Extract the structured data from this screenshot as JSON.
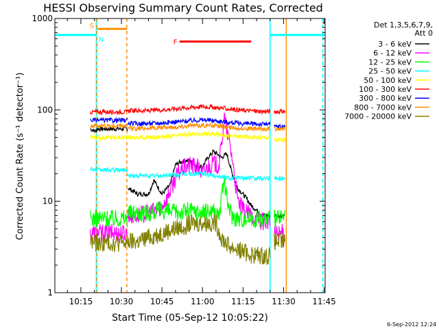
{
  "chart_data": {
    "type": "line",
    "title": "HESSI Observing Summary Count Rates, Corrected",
    "xlabel": "Start Time (05-Sep-12 10:05:22)",
    "ylabel": "Corrected Count Rate (s⁻¹ detector⁻¹)",
    "y_scale": "log",
    "ylim": [
      1,
      1000
    ],
    "yticks": [
      1,
      10,
      100,
      1000
    ],
    "ytick_labels": [
      "1",
      "10",
      "100",
      "1000"
    ],
    "x_unit": "minutes",
    "xlim": [
      605.37,
      705.37
    ],
    "xticks": [
      615,
      630,
      645,
      660,
      675,
      690,
      705
    ],
    "xtick_labels": [
      "10:15",
      "10:30",
      "10:45",
      "11:00",
      "11:15",
      "11:30",
      "11:45"
    ],
    "legend_title_lines": [
      "Det 1,3,5,6,7,9,",
      "Att 0"
    ],
    "legend_position": "right",
    "footer_date": "6-Sep-2012 12:24",
    "segments": [
      [
        618.5,
        632.2
      ],
      [
        632.3,
        685.0
      ],
      [
        686.5,
        690.5
      ]
    ],
    "series": [
      {
        "name": "3 - 6 keV",
        "color": "#000000",
        "points": [
          [
            618.5,
            62
          ],
          [
            619.5,
            60
          ],
          [
            620.5,
            58
          ],
          [
            620.9,
            62
          ],
          [
            632.3,
            14
          ],
          [
            636,
            12
          ],
          [
            640,
            12
          ],
          [
            642,
            17
          ],
          [
            645,
            12
          ],
          [
            648,
            15
          ],
          [
            650,
            25
          ],
          [
            652,
            27
          ],
          [
            655,
            28
          ],
          [
            658,
            24
          ],
          [
            660,
            24
          ],
          [
            662,
            30
          ],
          [
            664,
            35
          ],
          [
            666,
            32
          ],
          [
            667,
            30
          ],
          [
            669,
            33
          ],
          [
            671,
            20
          ],
          [
            673,
            14
          ],
          [
            676,
            11
          ],
          [
            678,
            9
          ],
          [
            680,
            8
          ],
          [
            682,
            7
          ],
          [
            685,
            7
          ],
          [
            686.5,
            7
          ],
          [
            688,
            7
          ],
          [
            690.5,
            7
          ]
        ]
      },
      {
        "name": "6 - 12 keV",
        "color": "#ff00ff",
        "points": [
          [
            618.5,
            4.5
          ],
          [
            620.5,
            4.5
          ],
          [
            632.3,
            7
          ],
          [
            636,
            7
          ],
          [
            640,
            7.5
          ],
          [
            643,
            8
          ],
          [
            645,
            9
          ],
          [
            647,
            11
          ],
          [
            650,
            18
          ],
          [
            652,
            22
          ],
          [
            655,
            25
          ],
          [
            658,
            24
          ],
          [
            660,
            20
          ],
          [
            662,
            24
          ],
          [
            664,
            26
          ],
          [
            666,
            24
          ],
          [
            667,
            40
          ],
          [
            668,
            85
          ],
          [
            669,
            60
          ],
          [
            671,
            30
          ],
          [
            673,
            10
          ],
          [
            675,
            8
          ],
          [
            678,
            7
          ],
          [
            680,
            6.5
          ],
          [
            682,
            6
          ],
          [
            685,
            6
          ],
          [
            686.5,
            4.5
          ],
          [
            690.5,
            4.5
          ]
        ]
      },
      {
        "name": "12 - 25 keV",
        "color": "#00ff00",
        "points": [
          [
            618.5,
            6.5
          ],
          [
            620.5,
            6.5
          ],
          [
            632.3,
            7.5
          ],
          [
            636,
            7.5
          ],
          [
            640,
            7.5
          ],
          [
            645,
            8
          ],
          [
            650,
            7.5
          ],
          [
            655,
            8
          ],
          [
            660,
            7.5
          ],
          [
            664,
            8
          ],
          [
            666,
            7
          ],
          [
            667,
            10
          ],
          [
            668,
            18
          ],
          [
            669,
            10
          ],
          [
            671,
            7
          ],
          [
            673,
            6.5
          ],
          [
            678,
            6.5
          ],
          [
            685,
            6.5
          ],
          [
            686.5,
            6.5
          ],
          [
            690.5,
            6.5
          ]
        ]
      },
      {
        "name": "25 - 50 keV",
        "color": "#00ffff",
        "points": [
          [
            618.5,
            23
          ],
          [
            620.5,
            22
          ],
          [
            632.3,
            19
          ],
          [
            640,
            19
          ],
          [
            645,
            19
          ],
          [
            650,
            19.5
          ],
          [
            655,
            20
          ],
          [
            660,
            20
          ],
          [
            665,
            19
          ],
          [
            670,
            18
          ],
          [
            675,
            18
          ],
          [
            680,
            18
          ],
          [
            685,
            18
          ],
          [
            686.5,
            18
          ],
          [
            690.5,
            18
          ]
        ]
      },
      {
        "name": "50 - 100 keV",
        "color": "#ffff00",
        "points": [
          [
            618.5,
            50
          ],
          [
            620.5,
            50
          ],
          [
            632.3,
            50
          ],
          [
            640,
            50
          ],
          [
            645,
            51
          ],
          [
            650,
            52
          ],
          [
            655,
            54
          ],
          [
            660,
            55
          ],
          [
            665,
            54
          ],
          [
            670,
            52
          ],
          [
            675,
            51
          ],
          [
            680,
            50
          ],
          [
            685,
            50
          ],
          [
            686.5,
            47
          ],
          [
            690.5,
            47
          ]
        ]
      },
      {
        "name": "100 - 300 keV",
        "color": "#ff0000",
        "points": [
          [
            618.5,
            95
          ],
          [
            620.5,
            95
          ],
          [
            632.3,
            98
          ],
          [
            640,
            98
          ],
          [
            645,
            100
          ],
          [
            650,
            103
          ],
          [
            655,
            106
          ],
          [
            660,
            109
          ],
          [
            665,
            106
          ],
          [
            670,
            102
          ],
          [
            675,
            99
          ],
          [
            680,
            97
          ],
          [
            685,
            96
          ],
          [
            686.5,
            96
          ],
          [
            690.5,
            96
          ]
        ]
      },
      {
        "name": "300 - 800 keV",
        "color": "#0000ff",
        "points": [
          [
            618.5,
            77
          ],
          [
            620.5,
            77
          ],
          [
            632.3,
            71
          ],
          [
            640,
            71
          ],
          [
            645,
            72
          ],
          [
            650,
            74
          ],
          [
            655,
            76
          ],
          [
            660,
            78
          ],
          [
            665,
            76
          ],
          [
            670,
            73
          ],
          [
            675,
            71
          ],
          [
            680,
            70
          ],
          [
            685,
            70
          ],
          [
            686.5,
            66
          ],
          [
            690.5,
            66
          ]
        ]
      },
      {
        "name": "800 - 7000 keV",
        "color": "#ff8c00",
        "points": [
          [
            618.5,
            67
          ],
          [
            620.5,
            67
          ],
          [
            632.3,
            63
          ],
          [
            640,
            63
          ],
          [
            645,
            64
          ],
          [
            650,
            65
          ],
          [
            655,
            67
          ],
          [
            660,
            68
          ],
          [
            665,
            67
          ],
          [
            670,
            64
          ],
          [
            675,
            63
          ],
          [
            680,
            62
          ],
          [
            685,
            62
          ],
          [
            686.5,
            62
          ],
          [
            690.5,
            62
          ]
        ]
      },
      {
        "name": "7000 - 20000 keV",
        "color": "#808000",
        "points": [
          [
            618.5,
            3.7
          ],
          [
            620.5,
            3.5
          ],
          [
            632.3,
            3.6
          ],
          [
            636,
            3.6
          ],
          [
            640,
            4.0
          ],
          [
            645,
            4.5
          ],
          [
            650,
            5.0
          ],
          [
            655,
            5.6
          ],
          [
            660,
            5.8
          ],
          [
            665,
            5.8
          ],
          [
            667,
            4.0
          ],
          [
            670,
            3.2
          ],
          [
            673,
            3.0
          ],
          [
            678,
            2.6
          ],
          [
            685,
            2.5
          ],
          [
            686.5,
            3.6
          ],
          [
            690.5,
            3.6
          ]
        ]
      }
    ],
    "annotations": [
      {
        "label": "S",
        "color": "#ff8c00",
        "x_start": 621.0,
        "x_end": 632.0,
        "y": 770
      },
      {
        "label": "N",
        "color": "#00ffff",
        "x_start": 605.37,
        "x_end": 620.8,
        "y": 660
      },
      {
        "label": "N",
        "color": "#00ffff",
        "x_start": 685.0,
        "x_end": 705.37,
        "y": 660
      },
      {
        "label": "F",
        "color": "#ff0000",
        "x_start": 651.5,
        "x_end": 678.0,
        "y": 560
      }
    ],
    "vertical_lines": [
      {
        "x": 620.7,
        "color": "#00ffff",
        "style": "solid"
      },
      {
        "x": 620.9,
        "color": "#ff8c00",
        "style": "dashed"
      },
      {
        "x": 632.0,
        "color": "#ff8c00",
        "style": "dashed"
      },
      {
        "x": 685.0,
        "color": "#00ffff",
        "style": "solid"
      },
      {
        "x": 691.0,
        "color": "#ff8c00",
        "style": "solid"
      },
      {
        "x": 704.5,
        "color": "#00ffff",
        "style": "dashed"
      }
    ]
  }
}
